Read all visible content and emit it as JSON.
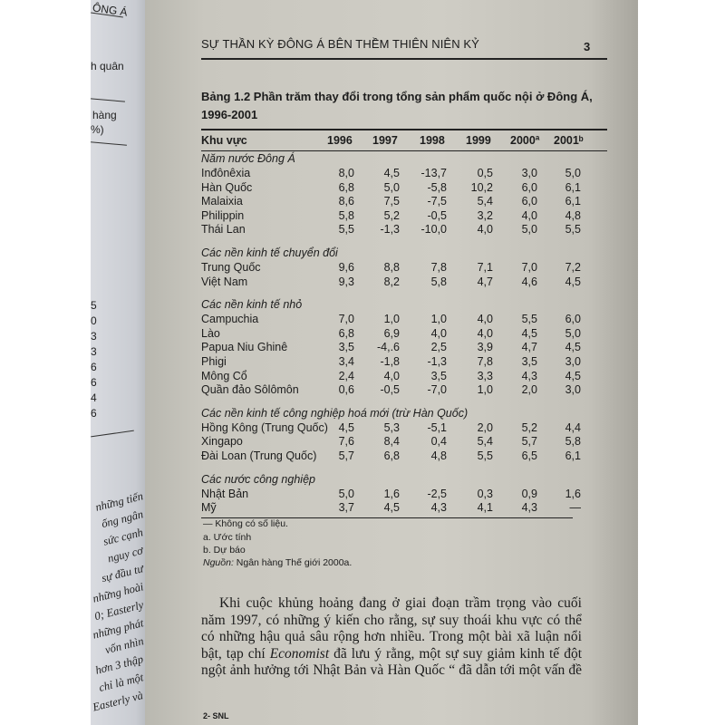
{
  "left_page": {
    "fragments": [
      "ÔNG Á",
      "h quân",
      "hàng",
      "%)"
    ],
    "numbers": [
      "5",
      "0",
      "3",
      "3",
      "6",
      "6",
      "4",
      "6"
    ],
    "text_lines": [
      "những tiến",
      "ống ngân",
      "sức cạnh",
      "nguy cơ",
      "sự đầu tư",
      "những hoài",
      "0; Easterly",
      "những phát",
      "vốn nhìn",
      "hơn 3 thập",
      "chỉ là một",
      "Easterly và"
    ]
  },
  "header": {
    "running_title": "SỰ THẦN KỲ ĐÔNG Á BÊN THỀM THIÊN NIÊN KỶ",
    "page_number": "3"
  },
  "table": {
    "title_line1": "Bảng 1.2  Phần trăm thay đổi trong tổng sản phẩm quốc nội ở Đông Á,",
    "title_line2": "1996-2001",
    "columns": [
      "Khu vực",
      "1996",
      "1997",
      "1998",
      "1999",
      "2000ª",
      "2001ᵇ"
    ],
    "sections": [
      {
        "name": "Năm nước Đông Á",
        "rows": [
          [
            "Inđônêxia",
            "8,0",
            "4,5",
            "-13,7",
            "0,5",
            "3,0",
            "5,0"
          ],
          [
            "Hàn Quốc",
            "6,8",
            "5,0",
            "-5,8",
            "10,2",
            "6,0",
            "6,1"
          ],
          [
            "Malaixia",
            "8,6",
            "7,5",
            "-7,5",
            "5,4",
            "6,0",
            "6,1"
          ],
          [
            "Philippin",
            "5,8",
            "5,2",
            "-0,5",
            "3,2",
            "4,0",
            "4,8"
          ],
          [
            "Thái Lan",
            "5,5",
            "-1,3",
            "-10,0",
            "4,0",
            "5,0",
            "5,5"
          ]
        ]
      },
      {
        "name": "Các nền kinh tế chuyển đổi",
        "rows": [
          [
            "Trung Quốc",
            "9,6",
            "8,8",
            "7,8",
            "7,1",
            "7,0",
            "7,2"
          ],
          [
            "Việt Nam",
            "9,3",
            "8,2",
            "5,8",
            "4,7",
            "4,6",
            "4,5"
          ]
        ]
      },
      {
        "name": "Các nền kinh tế nhỏ",
        "rows": [
          [
            "Campuchia",
            "7,0",
            "1,0",
            "1,0",
            "4,0",
            "5,5",
            "6,0"
          ],
          [
            "Lào",
            "6,8",
            "6,9",
            "4,0",
            "4,0",
            "4,5",
            "5,0"
          ],
          [
            "Papua Niu Ghinê",
            "3,5",
            "-4,.6",
            "2,5",
            "3,9",
            "4,7",
            "4,5"
          ],
          [
            "Phigi",
            "3,4",
            "-1,8",
            "-1,3",
            "7,8",
            "3,5",
            "3,0"
          ],
          [
            "Mông Cổ",
            "2,4",
            "4,0",
            "3,5",
            "3,3",
            "4,3",
            "4,5"
          ],
          [
            "Quần đảo Sôlômôn",
            "0,6",
            "-0,5",
            "-7,0",
            "1,0",
            "2,0",
            "3,0"
          ]
        ]
      },
      {
        "name": "Các nền kinh tế công nghiệp hoá mới (trừ Hàn Quốc)",
        "rows": [
          [
            "Hồng Kông  (Trung Quốc)",
            "4,5",
            "5,3",
            "-5,1",
            "2,0",
            "5,2",
            "4,4"
          ],
          [
            "Xingapo",
            "7,6",
            "8,4",
            "0,4",
            "5,4",
            "5,7",
            "5,8"
          ],
          [
            "Đài Loan (Trung Quốc)",
            "5,7",
            "6,8",
            "4,8",
            "5,5",
            "6,5",
            "6,1"
          ]
        ]
      },
      {
        "name": "Các nước công nghiệp",
        "rows": [
          [
            "Nhật Bản",
            "5,0",
            "1,6",
            "-2,5",
            "0,3",
            "0,9",
            "1,6"
          ],
          [
            "Mỹ",
            "3,7",
            "4,5",
            "4,3",
            "4,1",
            "4,3",
            "—"
          ]
        ]
      }
    ],
    "notes": [
      "— Không có số liệu.",
      "a. Ước tính",
      "b. Dự báo"
    ],
    "source_label": "Nguồn:",
    "source_text": " Ngân hàng Thế giới 2000a."
  },
  "body": {
    "p1": "Khi cuộc khủng hoảng đang ở giai đoạn trầm trọng vào cuối năm 1997, có những ý kiến cho rằng, sự suy thoái khu vực có thể có những hậu quả sâu rộng hơn nhiều. Trong một bài xã luận nổi bật, tạp chí ",
    "p1_italic": "Economist",
    "p1_end": " đã lưu ý rằng, một sự suy giảm kinh tế đột ngột ảnh hưởng tới Nhật Bản và Hàn Quốc “ đã dẫn tới một vấn đề"
  },
  "footer": {
    "signature": "2- SNL"
  }
}
